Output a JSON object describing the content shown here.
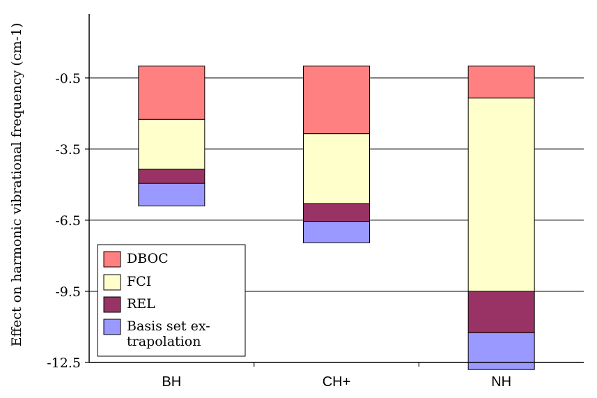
{
  "chart_data": {
    "type": "bar",
    "stacked": true,
    "title": "",
    "xlabel": "",
    "ylabel": "Effect on harmonic vibrational frequency (cm-1)",
    "ylim": [
      -12.5,
      2.2
    ],
    "yticks": [
      -0.5,
      -3.5,
      -6.5,
      -9.5,
      -12.5
    ],
    "ytick_labels": [
      "-0.5",
      "-3.5",
      "-6.5",
      "-9.5",
      "-12.5"
    ],
    "grid": "horizontal",
    "legend_position": "bottom-left",
    "categories": [
      "BH",
      "CH+",
      "NH"
    ],
    "series": [
      {
        "name": "DBOC",
        "color": "#ff8080",
        "values": [
          -2.25,
          -2.85,
          -1.35
        ]
      },
      {
        "name": "FCI",
        "color": "#ffffcc",
        "values": [
          -2.1,
          -2.95,
          -8.15
        ]
      },
      {
        "name": "REL",
        "color": "#993366",
        "values": [
          -0.6,
          -0.75,
          -1.75
        ]
      },
      {
        "name": "Basis set ex-\ntrapolation",
        "color": "#9999ff",
        "values": [
          -0.95,
          -0.9,
          -1.55
        ]
      }
    ]
  }
}
